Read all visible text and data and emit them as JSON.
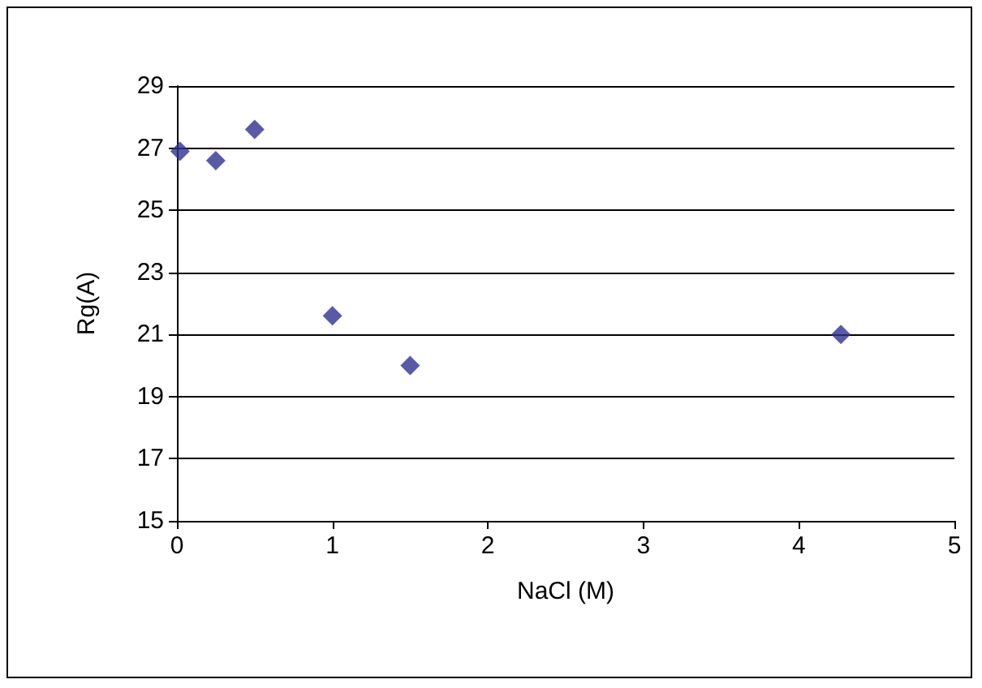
{
  "chart_data": {
    "type": "scatter",
    "xlabel": "NaCl (M)",
    "ylabel": "Rg(A)",
    "x": [
      0.02,
      0.25,
      0.5,
      1.0,
      1.5,
      4.27
    ],
    "series": [
      {
        "color": "#2e3192",
        "values": [
          26.9,
          26.6,
          27.6,
          21.6,
          20.0,
          21.0
        ]
      }
    ],
    "xlim": [
      0,
      5
    ],
    "xticks": [
      0,
      1,
      2,
      3,
      4,
      5
    ],
    "ylim": [
      15,
      29
    ],
    "yticks": [
      15,
      17,
      19,
      21,
      23,
      25,
      27,
      29
    ],
    "grid": "y",
    "marker": "diamond"
  }
}
